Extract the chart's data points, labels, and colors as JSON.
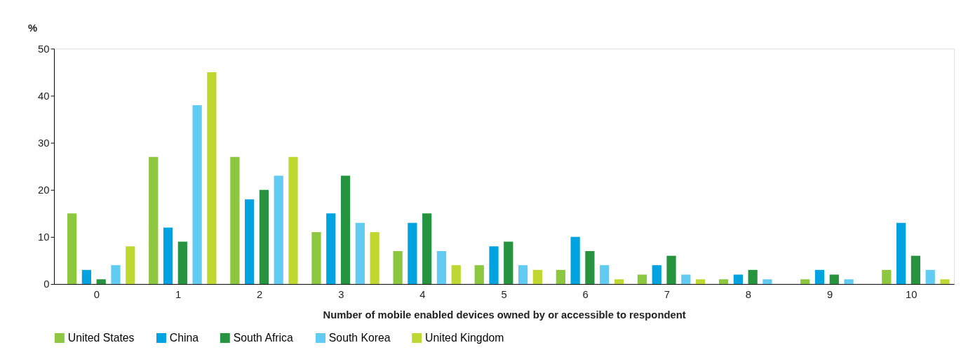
{
  "chart_data": {
    "type": "bar",
    "xlabel": "Number of mobile enabled devices owned by or accessible to respondent",
    "ylabel": "%",
    "categories": [
      "0",
      "1",
      "2",
      "3",
      "4",
      "5",
      "6",
      "7",
      "8",
      "9",
      "10"
    ],
    "series": [
      {
        "name": "United States",
        "color": "#8dc63f",
        "values": [
          15,
          27,
          27,
          11,
          7,
          4,
          3,
          2,
          1,
          1,
          3
        ]
      },
      {
        "name": "China",
        "color": "#00a3e0",
        "values": [
          3,
          12,
          18,
          15,
          13,
          8,
          10,
          4,
          2,
          3,
          13
        ]
      },
      {
        "name": "South Africa",
        "color": "#26933f",
        "values": [
          1,
          9,
          20,
          23,
          15,
          9,
          7,
          6,
          3,
          2,
          6
        ]
      },
      {
        "name": "South Korea",
        "color": "#62cbf1",
        "values": [
          4,
          38,
          23,
          13,
          7,
          4,
          4,
          2,
          1,
          1,
          3
        ]
      },
      {
        "name": "United Kingdom",
        "color": "#bfd730",
        "values": [
          8,
          45,
          27,
          11,
          4,
          3,
          1,
          1,
          0,
          0,
          1
        ]
      }
    ],
    "ylim": [
      0,
      50
    ],
    "yticks": [
      0,
      10,
      20,
      30,
      40,
      50
    ],
    "grid": false,
    "legend": "bottom"
  }
}
